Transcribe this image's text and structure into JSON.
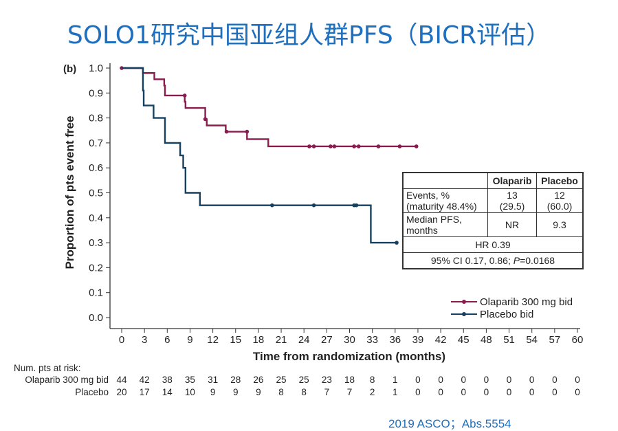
{
  "title": "SOLO1研究中国亚组人群PFS（BICR评估）",
  "citation": "2019 ASCO；Abs.5554",
  "chart_data": {
    "type": "line",
    "subtype": "kaplan-meier step",
    "panel_label": "(b)",
    "xlabel": "Time from randomization (months)",
    "ylabel": "Proportion of pts event free",
    "xlim": [
      0,
      60
    ],
    "ylim": [
      0,
      1.0
    ],
    "xticks": [
      0,
      3,
      6,
      9,
      12,
      15,
      18,
      21,
      24,
      27,
      30,
      33,
      36,
      39,
      42,
      45,
      48,
      51,
      54,
      57,
      60
    ],
    "yticks": [
      "0.0",
      "0.1",
      "0.2",
      "0.3",
      "0.4",
      "0.5",
      "0.6",
      "0.7",
      "0.8",
      "0.9",
      "1.0"
    ],
    "grid": false,
    "legend_position": "right",
    "series": [
      {
        "name": "Olaparib 300 mg bid",
        "color": "#8b1a4f",
        "steps": [
          [
            2.8,
            0.98
          ],
          [
            4.3,
            0.955
          ],
          [
            5.6,
            0.93
          ],
          [
            5.7,
            0.89
          ],
          [
            8.3,
            0.865
          ],
          [
            8.4,
            0.84
          ],
          [
            11.0,
            0.795
          ],
          [
            11.2,
            0.77
          ],
          [
            13.7,
            0.745
          ],
          [
            16.4,
            0.745
          ],
          [
            16.5,
            0.715
          ],
          [
            19.3,
            0.686
          ]
        ],
        "censored": [
          [
            0,
            1.0
          ],
          [
            8.3,
            0.89
          ],
          [
            11.0,
            0.795
          ],
          [
            13.8,
            0.745
          ],
          [
            16.5,
            0.745
          ],
          [
            24.7,
            0.686
          ],
          [
            25.3,
            0.686
          ],
          [
            27.5,
            0.686
          ],
          [
            28.0,
            0.686
          ],
          [
            30.6,
            0.686
          ],
          [
            31.2,
            0.686
          ],
          [
            33.8,
            0.686
          ],
          [
            36.6,
            0.686
          ],
          [
            38.8,
            0.686
          ]
        ]
      },
      {
        "name": "Placebo bid",
        "color": "#16405f",
        "steps": [
          [
            2.8,
            0.91
          ],
          [
            2.9,
            0.85
          ],
          [
            4.2,
            0.8
          ],
          [
            5.7,
            0.7
          ],
          [
            7.7,
            0.65
          ],
          [
            8.1,
            0.6
          ],
          [
            8.4,
            0.5
          ],
          [
            10.3,
            0.45
          ],
          [
            32.8,
            0.3
          ]
        ],
        "censored": [
          [
            19.8,
            0.45
          ],
          [
            25.3,
            0.45
          ],
          [
            30.6,
            0.45
          ],
          [
            30.9,
            0.45
          ],
          [
            36.2,
            0.3
          ]
        ]
      }
    ],
    "stats_table": {
      "headers": [
        "",
        "Olaparib",
        "Placebo"
      ],
      "events_label": "Events, %",
      "events_sub": "(maturity 48.4%)",
      "events_olaparib": "13",
      "events_olaparib_pct": "(29.5)",
      "events_placebo": "12",
      "events_placebo_pct": "(60.0)",
      "median_label": "Median PFS,",
      "median_sub": "months",
      "median_olaparib": "NR",
      "median_placebo": "9.3",
      "hr": "HR 0.39",
      "ci_prefix": "95% CI 0.17, 0.86; ",
      "p_label": "P",
      "p_value": "=0.0168"
    },
    "risk_table": {
      "title": "Num. pts at risk:",
      "rows": [
        {
          "label": "Olaparib 300 mg bid",
          "values": [
            "44",
            "42",
            "38",
            "35",
            "31",
            "28",
            "26",
            "25",
            "25",
            "23",
            "18",
            "8",
            "1",
            "0",
            "0",
            "0",
            "0",
            "0",
            "0",
            "0",
            "0"
          ]
        },
        {
          "label": "Placebo",
          "values": [
            "20",
            "17",
            "14",
            "10",
            "9",
            "9",
            "9",
            "8",
            "8",
            "7",
            "7",
            "2",
            "1",
            "0",
            "0",
            "0",
            "0",
            "0",
            "0",
            "0",
            "0"
          ]
        }
      ]
    }
  }
}
